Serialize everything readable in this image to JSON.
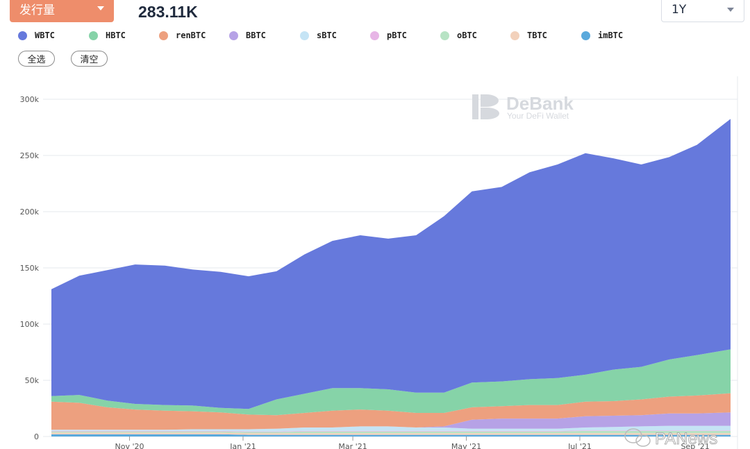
{
  "header": {
    "metric_label": "发行量",
    "supply_caption": "",
    "supply_value": "283.11K",
    "range_label": "1Y"
  },
  "controls": {
    "select_all": "全选",
    "clear": "清空"
  },
  "watermark": {
    "brand": "DeBank",
    "tagline": "Your DeFi Wallet",
    "source": "PANews"
  },
  "colors": {
    "WBTC": "#6679dc",
    "HBTC": "#86d3a8",
    "renBTC": "#eda07f",
    "BBTC": "#b6a2e6",
    "sBTC": "#c5e4f5",
    "pBTC": "#e7b5e6",
    "oBTC": "#b7e3c4",
    "TBTC": "#f2d1bb",
    "imBTC": "#5aa9dc"
  },
  "chart_data": {
    "type": "area",
    "stacked": true,
    "grid": true,
    "ylim": [
      0,
      300000
    ],
    "yticks": [
      0,
      50000,
      100000,
      150000,
      200000,
      250000,
      300000
    ],
    "yticklabels": [
      "0",
      "50k",
      "100k",
      "150k",
      "200k",
      "250k",
      "300k"
    ],
    "xlim": [
      "2020-09-20",
      "2021-09-20"
    ],
    "xticks": [
      "2020-11-01",
      "2021-01-01",
      "2021-03-01",
      "2021-05-01",
      "2021-07-01",
      "2021-09-01"
    ],
    "xticklabels": [
      "Nov '20",
      "Jan '21",
      "Mar '21",
      "May '21",
      "Jul '21",
      "Sep '21"
    ],
    "legend": "top",
    "x": [
      "2020-09-20",
      "2020-10-05",
      "2020-10-20",
      "2020-11-04",
      "2020-11-20",
      "2020-12-05",
      "2020-12-20",
      "2021-01-04",
      "2021-01-19",
      "2021-02-03",
      "2021-02-18",
      "2021-03-05",
      "2021-03-20",
      "2021-04-04",
      "2021-04-19",
      "2021-05-04",
      "2021-05-20",
      "2021-06-04",
      "2021-06-19",
      "2021-07-04",
      "2021-07-19",
      "2021-08-03",
      "2021-08-18",
      "2021-09-02",
      "2021-09-20"
    ],
    "series": [
      {
        "name": "imBTC",
        "values": [
          2000,
          2000,
          2000,
          2000,
          2000,
          2000,
          2000,
          1500,
          1500,
          1500,
          1500,
          1500,
          1500,
          1500,
          1500,
          1500,
          1500,
          1500,
          1500,
          1500,
          1500,
          1500,
          1500,
          1500,
          1500
        ]
      },
      {
        "name": "TBTC",
        "values": [
          1500,
          1500,
          1500,
          1500,
          1500,
          1500,
          1500,
          1500,
          1500,
          1500,
          1500,
          1500,
          1500,
          1500,
          1500,
          1500,
          1500,
          1500,
          1500,
          1500,
          1500,
          1500,
          1500,
          1500,
          1500
        ]
      },
      {
        "name": "oBTC",
        "values": [
          1000,
          1000,
          1000,
          1000,
          1000,
          1000,
          1000,
          1000,
          1000,
          1500,
          1500,
          1500,
          1500,
          1500,
          1500,
          1500,
          1500,
          1500,
          1500,
          2000,
          2000,
          2000,
          2000,
          2000,
          2000
        ]
      },
      {
        "name": "pBTC",
        "values": [
          500,
          500,
          500,
          500,
          500,
          500,
          500,
          500,
          500,
          500,
          500,
          500,
          500,
          500,
          500,
          500,
          500,
          500,
          500,
          500,
          500,
          500,
          500,
          500,
          500
        ]
      },
      {
        "name": "sBTC",
        "values": [
          1000,
          1000,
          1000,
          1000,
          1000,
          1500,
          1500,
          2000,
          2500,
          3000,
          3000,
          4000,
          4000,
          3000,
          3000,
          2000,
          2000,
          2000,
          2000,
          2500,
          3000,
          3500,
          4000,
          4000,
          4000
        ]
      },
      {
        "name": "BBTC",
        "values": [
          0,
          0,
          0,
          0,
          0,
          0,
          0,
          0,
          0,
          0,
          0,
          0,
          0,
          0,
          1000,
          8000,
          9000,
          9000,
          9000,
          10000,
          10000,
          10000,
          11000,
          11000,
          12000
        ]
      },
      {
        "name": "renBTC",
        "values": [
          25000,
          24000,
          20000,
          18000,
          17000,
          16000,
          15000,
          13000,
          12000,
          13000,
          15000,
          15000,
          14000,
          13000,
          12000,
          11000,
          11000,
          12000,
          12000,
          13000,
          13000,
          14000,
          15000,
          16000,
          17000
        ]
      },
      {
        "name": "HBTC",
        "values": [
          5000,
          7000,
          6000,
          5000,
          5000,
          5000,
          4000,
          5000,
          14000,
          17000,
          20000,
          19000,
          19000,
          18000,
          18000,
          22000,
          22000,
          23000,
          24000,
          24000,
          28000,
          29000,
          33000,
          36000,
          39000
        ]
      },
      {
        "name": "WBTC",
        "values": [
          95000,
          106000,
          116000,
          124000,
          124000,
          121000,
          121000,
          118000,
          114000,
          124000,
          131000,
          136000,
          134000,
          140000,
          157000,
          170000,
          173000,
          184000,
          190000,
          197000,
          188000,
          180000,
          180000,
          187000,
          205000
        ]
      }
    ]
  }
}
